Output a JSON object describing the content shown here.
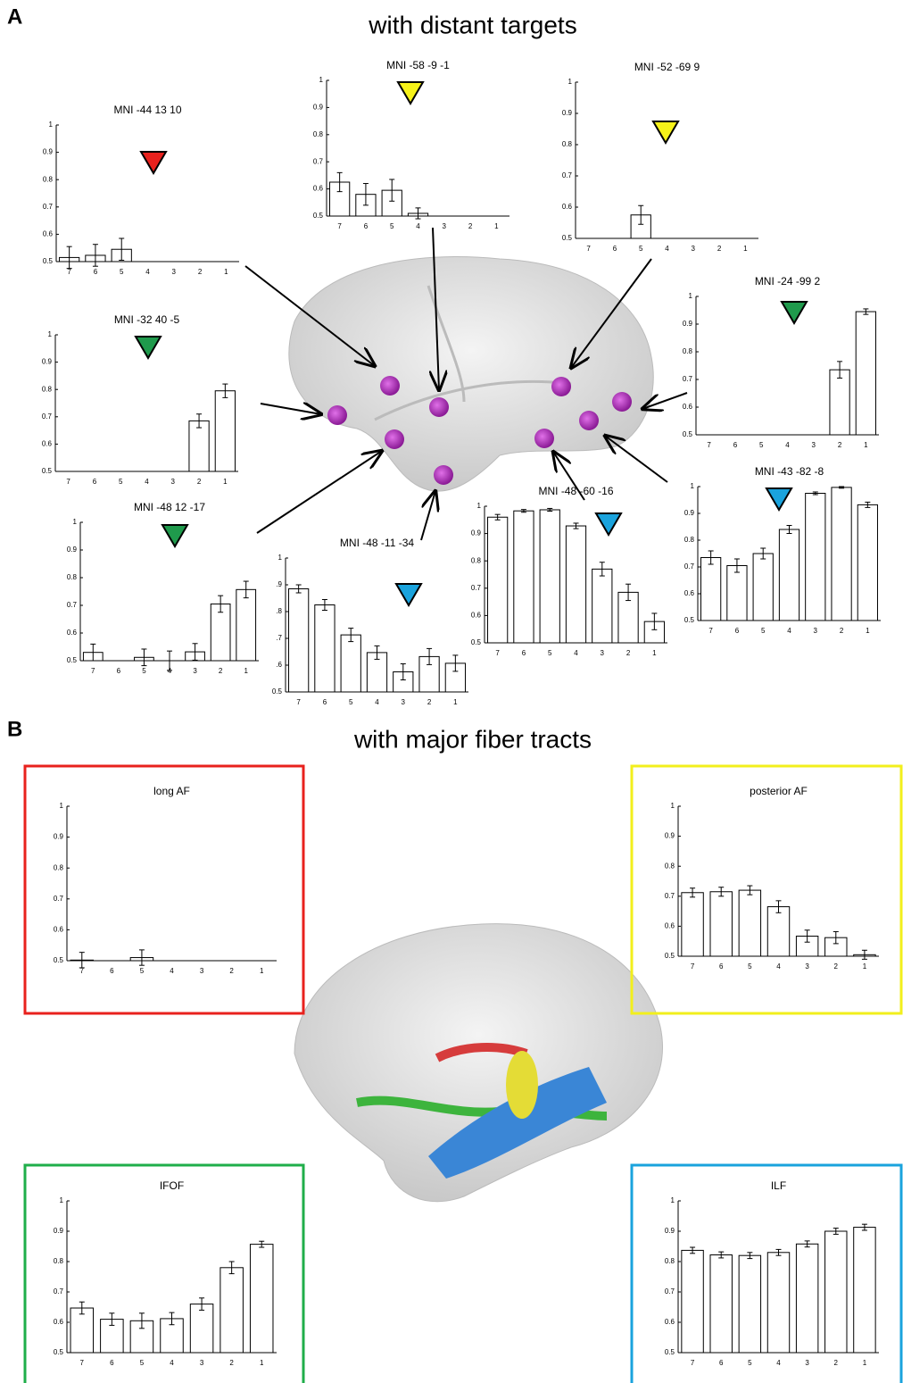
{
  "panel_a": {
    "label": "A",
    "title": "with distant targets"
  },
  "panel_b": {
    "label": "B",
    "title": "with major fiber tracts"
  },
  "chart_data": [
    {
      "type": "bar",
      "title": "MNI -44  13  10",
      "marker_color": "#e8211d",
      "categories": [
        "7",
        "6",
        "5",
        "4",
        "3",
        "2",
        "1"
      ],
      "values": [
        0.515,
        0.523,
        0.545,
        0.5,
        0.5,
        0.5,
        0.5
      ],
      "errors": [
        0.04,
        0.04,
        0.04,
        0,
        0,
        0,
        0
      ],
      "ylim": [
        0.5,
        1
      ],
      "yticks": [
        0.5,
        0.6,
        0.7,
        0.8,
        0.9,
        1
      ]
    },
    {
      "type": "bar",
      "title": "MNI -58  -9  -1",
      "marker_color": "#f6f219",
      "categories": [
        "7",
        "6",
        "5",
        "4",
        "3",
        "2",
        "1"
      ],
      "values": [
        0.625,
        0.58,
        0.595,
        0.51,
        0.5,
        0.5,
        0.5
      ],
      "errors": [
        0.035,
        0.04,
        0.04,
        0.02,
        0,
        0,
        0
      ],
      "ylim": [
        0.5,
        1
      ],
      "yticks": [
        0.5,
        0.6,
        0.7,
        0.8,
        0.9,
        1
      ]
    },
    {
      "type": "bar",
      "title": "MNI -52 -69   9",
      "marker_color": "#f6f219",
      "categories": [
        "7",
        "6",
        "5",
        "4",
        "3",
        "2",
        "1"
      ],
      "values": [
        0.5,
        0.5,
        0.575,
        0.5,
        0.5,
        0.5,
        0.5
      ],
      "errors": [
        0,
        0,
        0.03,
        0,
        0,
        0,
        0
      ],
      "ylim": [
        0.5,
        1
      ],
      "yticks": [
        0.5,
        0.6,
        0.7,
        0.8,
        0.9,
        1
      ]
    },
    {
      "type": "bar",
      "title": "MNI -24 -99   2",
      "marker_color": "#1f9a4c",
      "categories": [
        "7",
        "6",
        "5",
        "4",
        "3",
        "2",
        "1"
      ],
      "values": [
        0.5,
        0.5,
        0.5,
        0.5,
        0.5,
        0.735,
        0.945
      ],
      "errors": [
        0,
        0,
        0,
        0,
        0,
        0.03,
        0.01
      ],
      "ylim": [
        0.5,
        1
      ],
      "yticks": [
        0.5,
        0.6,
        0.7,
        0.8,
        0.9,
        1
      ]
    },
    {
      "type": "bar",
      "title": "MNI -32  40  -5",
      "marker_color": "#1f9a4c",
      "categories": [
        "7",
        "6",
        "5",
        "4",
        "3",
        "2",
        "1"
      ],
      "values": [
        0.5,
        0.5,
        0.5,
        0.5,
        0.5,
        0.685,
        0.795
      ],
      "errors": [
        0,
        0,
        0,
        0,
        0,
        0.025,
        0.025
      ],
      "ylim": [
        0.5,
        1
      ],
      "yticks": [
        0.5,
        0.6,
        0.7,
        0.8,
        0.9,
        1
      ]
    },
    {
      "type": "bar",
      "title": "MNI -48  12 -17",
      "marker_color": "#1f9a4c",
      "categories": [
        "7",
        "6",
        "5",
        "4",
        "3",
        "2",
        "1"
      ],
      "values": [
        0.53,
        0.5,
        0.512,
        0.5,
        0.532,
        0.705,
        0.757
      ],
      "errors": [
        0.03,
        0,
        0.03,
        0.035,
        0.03,
        0.03,
        0.03
      ],
      "ylim": [
        0.5,
        1
      ],
      "yticks": [
        0.5,
        0.6,
        0.7,
        0.8,
        0.9,
        1
      ]
    },
    {
      "type": "bar",
      "title": "MNI -48 -11 -34",
      "marker_color": "#1aa3dd",
      "categories": [
        "7",
        "6",
        "5",
        "4",
        "3",
        "2",
        "1"
      ],
      "values": [
        0.885,
        0.825,
        0.713,
        0.647,
        0.575,
        0.632,
        0.607
      ],
      "errors": [
        0.015,
        0.02,
        0.025,
        0.025,
        0.03,
        0.03,
        0.03
      ],
      "ylim": [
        0.5,
        1
      ],
      "yticks": [
        0.5,
        {
          "value": 0.6,
          "label": ".6"
        },
        {
          "value": 0.7,
          "label": ".7"
        },
        {
          "value": 0.8,
          "label": ".8"
        },
        {
          "value": 0.9,
          "label": ".9"
        },
        1
      ]
    },
    {
      "type": "bar",
      "title": "MNI -48 -60 -16",
      "marker_color": "#1aa3dd",
      "categories": [
        "7",
        "6",
        "5",
        "4",
        "3",
        "2",
        "1"
      ],
      "values": [
        0.96,
        0.983,
        0.987,
        0.928,
        0.77,
        0.685,
        0.578
      ],
      "errors": [
        0.01,
        0.005,
        0.005,
        0.01,
        0.025,
        0.03,
        0.03
      ],
      "ylim": [
        0.5,
        1
      ],
      "yticks": [
        0.5,
        0.6,
        0.7,
        0.8,
        0.9,
        1
      ]
    },
    {
      "type": "bar",
      "title": "MNI -43 -82  -8",
      "marker_color": "#1aa3dd",
      "categories": [
        "7",
        "6",
        "5",
        "4",
        "3",
        "2",
        "1"
      ],
      "values": [
        0.735,
        0.705,
        0.75,
        0.84,
        0.975,
        0.997,
        0.932
      ],
      "errors": [
        0.025,
        0.025,
        0.02,
        0.015,
        0.005,
        0.003,
        0.01
      ],
      "ylim": [
        0.5,
        1
      ],
      "yticks": [
        0.5,
        0.6,
        0.7,
        0.8,
        0.9,
        1
      ]
    },
    {
      "type": "bar",
      "title": "long AF",
      "frame_color": "#e8211d",
      "categories": [
        "7",
        "6",
        "5",
        "4",
        "3",
        "2",
        "1"
      ],
      "values": [
        0.502,
        0.5,
        0.51,
        0.5,
        0.5,
        0.5,
        0.5
      ],
      "errors": [
        0.025,
        0,
        0.025,
        0,
        0,
        0,
        0
      ],
      "ylim": [
        0.5,
        1
      ],
      "yticks": [
        0.5,
        0.6,
        0.7,
        0.8,
        0.9,
        1
      ]
    },
    {
      "type": "bar",
      "title": "posterior AF",
      "frame_color": "#f2ef1c",
      "categories": [
        "7",
        "6",
        "5",
        "4",
        "3",
        "2",
        "1"
      ],
      "values": [
        0.712,
        0.715,
        0.72,
        0.665,
        0.567,
        0.562,
        0.505
      ],
      "errors": [
        0.015,
        0.015,
        0.015,
        0.02,
        0.02,
        0.02,
        0.015
      ],
      "ylim": [
        0.5,
        1
      ],
      "yticks": [
        0.5,
        0.6,
        0.7,
        0.8,
        0.9,
        1
      ]
    },
    {
      "type": "bar",
      "title": "IFOF",
      "frame_color": "#1fae4a",
      "categories": [
        "7",
        "6",
        "5",
        "4",
        "3",
        "2",
        "1"
      ],
      "values": [
        0.647,
        0.61,
        0.605,
        0.612,
        0.66,
        0.78,
        0.857
      ],
      "errors": [
        0.02,
        0.02,
        0.025,
        0.02,
        0.02,
        0.02,
        0.01
      ],
      "ylim": [
        0.5,
        1
      ],
      "yticks": [
        0.5,
        0.6,
        0.7,
        0.8,
        0.9,
        1
      ]
    },
    {
      "type": "bar",
      "title": "ILF",
      "frame_color": "#1aa3dd",
      "categories": [
        "7",
        "6",
        "5",
        "4",
        "3",
        "2",
        "1"
      ],
      "values": [
        0.837,
        0.822,
        0.82,
        0.83,
        0.858,
        0.9,
        0.913
      ],
      "errors": [
        0.01,
        0.01,
        0.01,
        0.01,
        0.01,
        0.01,
        0.01
      ],
      "ylim": [
        0.5,
        1
      ],
      "yticks": [
        0.5,
        0.6,
        0.7,
        0.8,
        0.9,
        1
      ]
    }
  ]
}
